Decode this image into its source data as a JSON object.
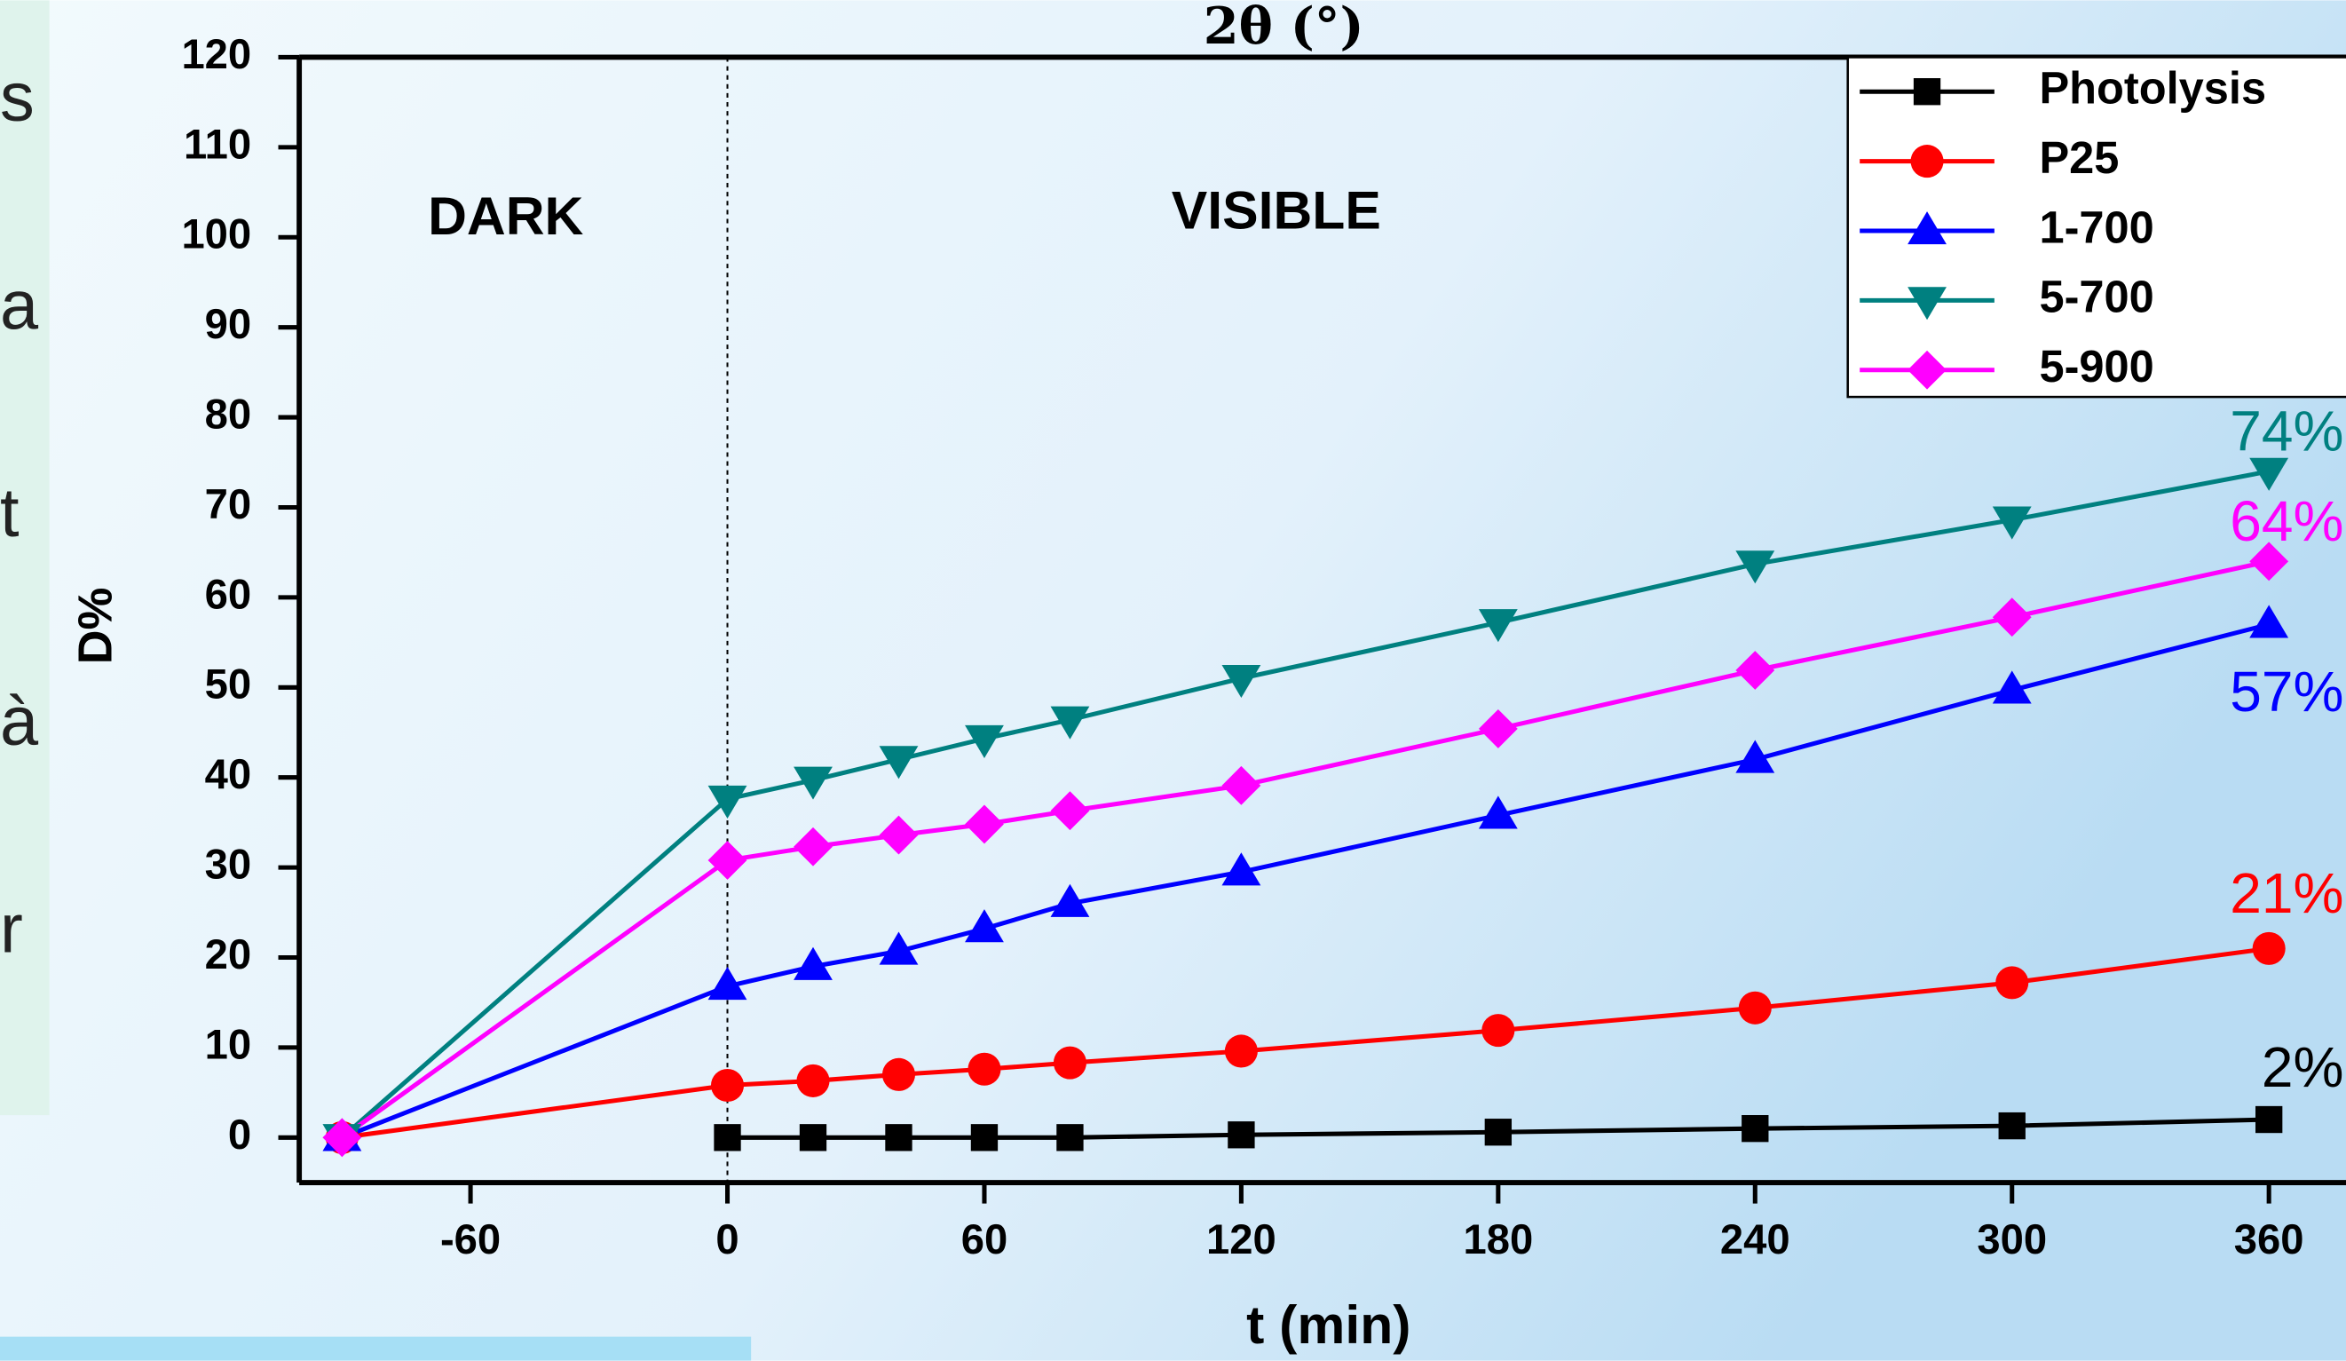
{
  "chart_data": {
    "type": "line",
    "top_text": "2θ (°)",
    "xlabel": "t (min)",
    "ylabel": "D%",
    "region_labels": [
      "DARK",
      "VISIBLE"
    ],
    "dark_visible_boundary": 0,
    "x": [
      -90,
      0,
      20,
      40,
      60,
      80,
      120,
      180,
      240,
      300,
      360
    ],
    "series": [
      {
        "name": "Photolysis",
        "color": "#000000",
        "marker": "square",
        "values": [
          null,
          0,
          0,
          0,
          0,
          0,
          0.3,
          0.6,
          1,
          1.3,
          2
        ],
        "value_labels": [
          null,
          null,
          null,
          null,
          null,
          null,
          null,
          null,
          null,
          null,
          "2%"
        ]
      },
      {
        "name": "P25",
        "color": "#ff0000",
        "marker": "circle",
        "values": [
          0,
          5.8,
          6.3,
          7,
          7.6,
          8.3,
          9.6,
          11.9,
          14.4,
          17.2,
          21
        ],
        "value_labels": [
          null,
          null,
          null,
          null,
          null,
          null,
          null,
          null,
          null,
          null,
          "21%"
        ]
      },
      {
        "name": "1-700",
        "color": "#0000ff",
        "marker": "triangle-up",
        "values": [
          0,
          16.8,
          19,
          20.7,
          23.2,
          26,
          29.5,
          35.8,
          42,
          49.7,
          57
        ],
        "value_labels": [
          null,
          null,
          null,
          null,
          null,
          null,
          null,
          null,
          null,
          null,
          "57%"
        ]
      },
      {
        "name": "5-700",
        "color": "#008080",
        "marker": "triangle-down",
        "values": [
          0,
          37.6,
          39.7,
          42,
          44.3,
          46.4,
          51,
          57.2,
          63.7,
          68.6,
          74
        ],
        "value_labels": [
          null,
          null,
          null,
          null,
          null,
          null,
          null,
          null,
          null,
          null,
          "74%"
        ]
      },
      {
        "name": "5-900",
        "color": "#ff00ff",
        "marker": "diamond",
        "values": [
          0,
          30.8,
          32.3,
          33.6,
          34.8,
          36.3,
          39.1,
          45.4,
          51.9,
          57.8,
          64
        ],
        "value_labels": [
          null,
          null,
          null,
          null,
          null,
          null,
          null,
          null,
          null,
          null,
          "64%"
        ]
      }
    ],
    "xlim": [
      -100,
      378
    ],
    "xticks": [
      -60,
      0,
      60,
      120,
      180,
      240,
      300,
      360
    ],
    "ylim": [
      -5,
      120
    ],
    "yticks": [
      0,
      10,
      20,
      30,
      40,
      50,
      60,
      70,
      80,
      90,
      100,
      110,
      120
    ],
    "grid": false,
    "legend": "upper right"
  },
  "background_fragments": [
    "s",
    "a",
    "t",
    "à",
    "r"
  ]
}
